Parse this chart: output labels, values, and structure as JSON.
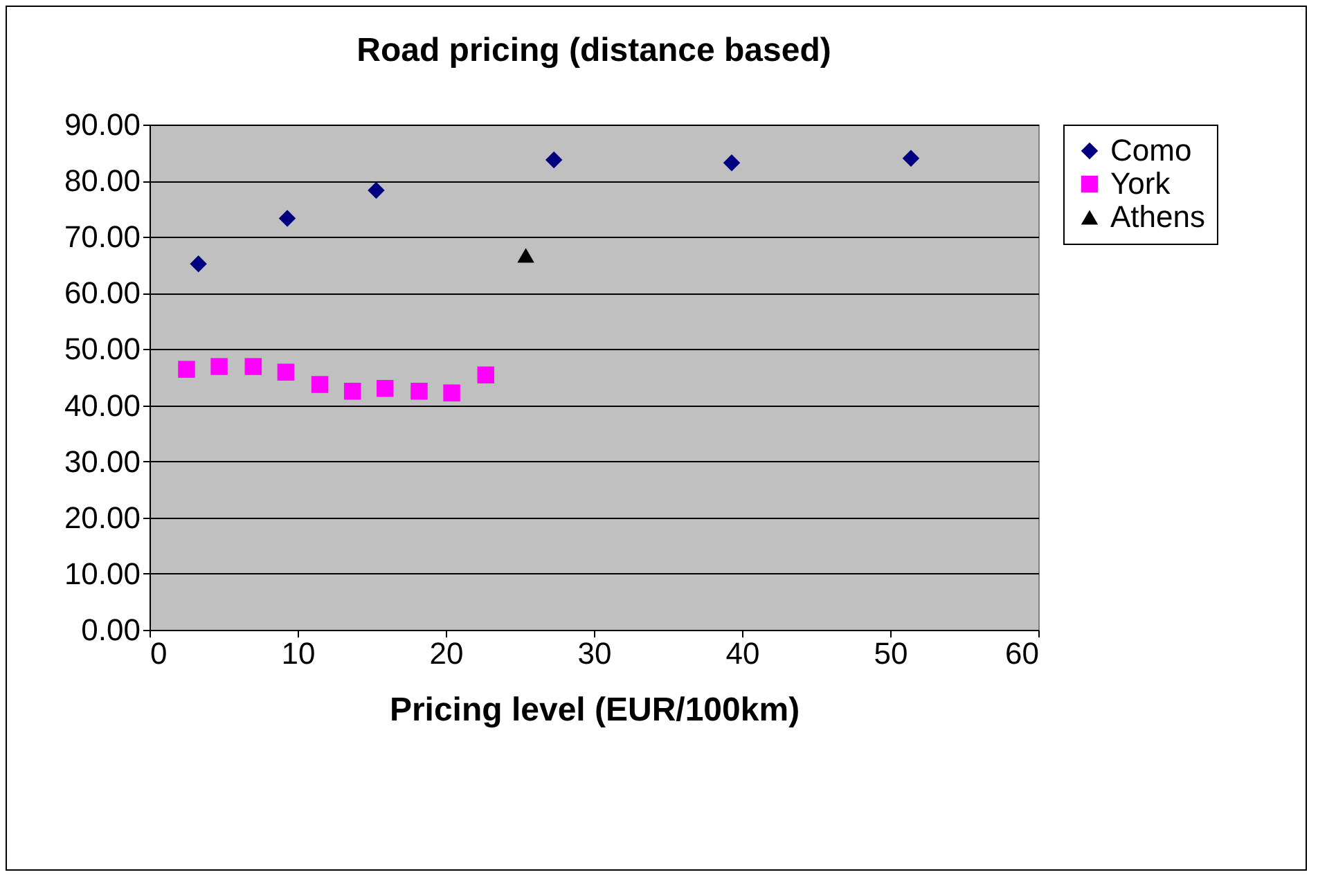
{
  "chart_data": {
    "type": "scatter",
    "title": "Road pricing (distance based)",
    "xlabel": "Pricing level (EUR/100km)",
    "xlim": [
      0,
      60
    ],
    "xticks": [
      0,
      10,
      20,
      30,
      40,
      50,
      60
    ],
    "ylim": [
      0,
      90
    ],
    "yticks": [
      {
        "value": 0,
        "label": "0.00"
      },
      {
        "value": 10,
        "label": "10.00"
      },
      {
        "value": 20,
        "label": "20.00"
      },
      {
        "value": 30,
        "label": "30.00"
      },
      {
        "value": 40,
        "label": "40.00"
      },
      {
        "value": 50,
        "label": "50.00"
      },
      {
        "value": 60,
        "label": "60.00"
      },
      {
        "value": 70,
        "label": "70.00"
      },
      {
        "value": 80,
        "label": "80.00"
      },
      {
        "value": 90,
        "label": "90.00"
      }
    ],
    "grid": "y",
    "legend": "right",
    "series": [
      {
        "name": "Como",
        "color": "#000080",
        "marker": "diamond",
        "x": [
          3.3,
          9.3,
          15.3,
          27.3,
          39.3,
          51.4
        ],
        "values": [
          65.2,
          73.3,
          78.3,
          83.7,
          83.2,
          84.0
        ]
      },
      {
        "name": "York",
        "color": "#ff00ff",
        "marker": "square",
        "x": [
          2.5,
          4.7,
          7.0,
          9.2,
          11.5,
          13.7,
          15.9,
          18.2,
          20.4,
          22.7
        ],
        "values": [
          46.4,
          46.9,
          46.9,
          45.9,
          43.7,
          42.5,
          43.0,
          42.5,
          42.2,
          45.4
        ]
      },
      {
        "name": "Athens",
        "color": "#000000",
        "marker": "triangle",
        "x": [
          25.4
        ],
        "values": [
          66.7
        ]
      }
    ]
  }
}
